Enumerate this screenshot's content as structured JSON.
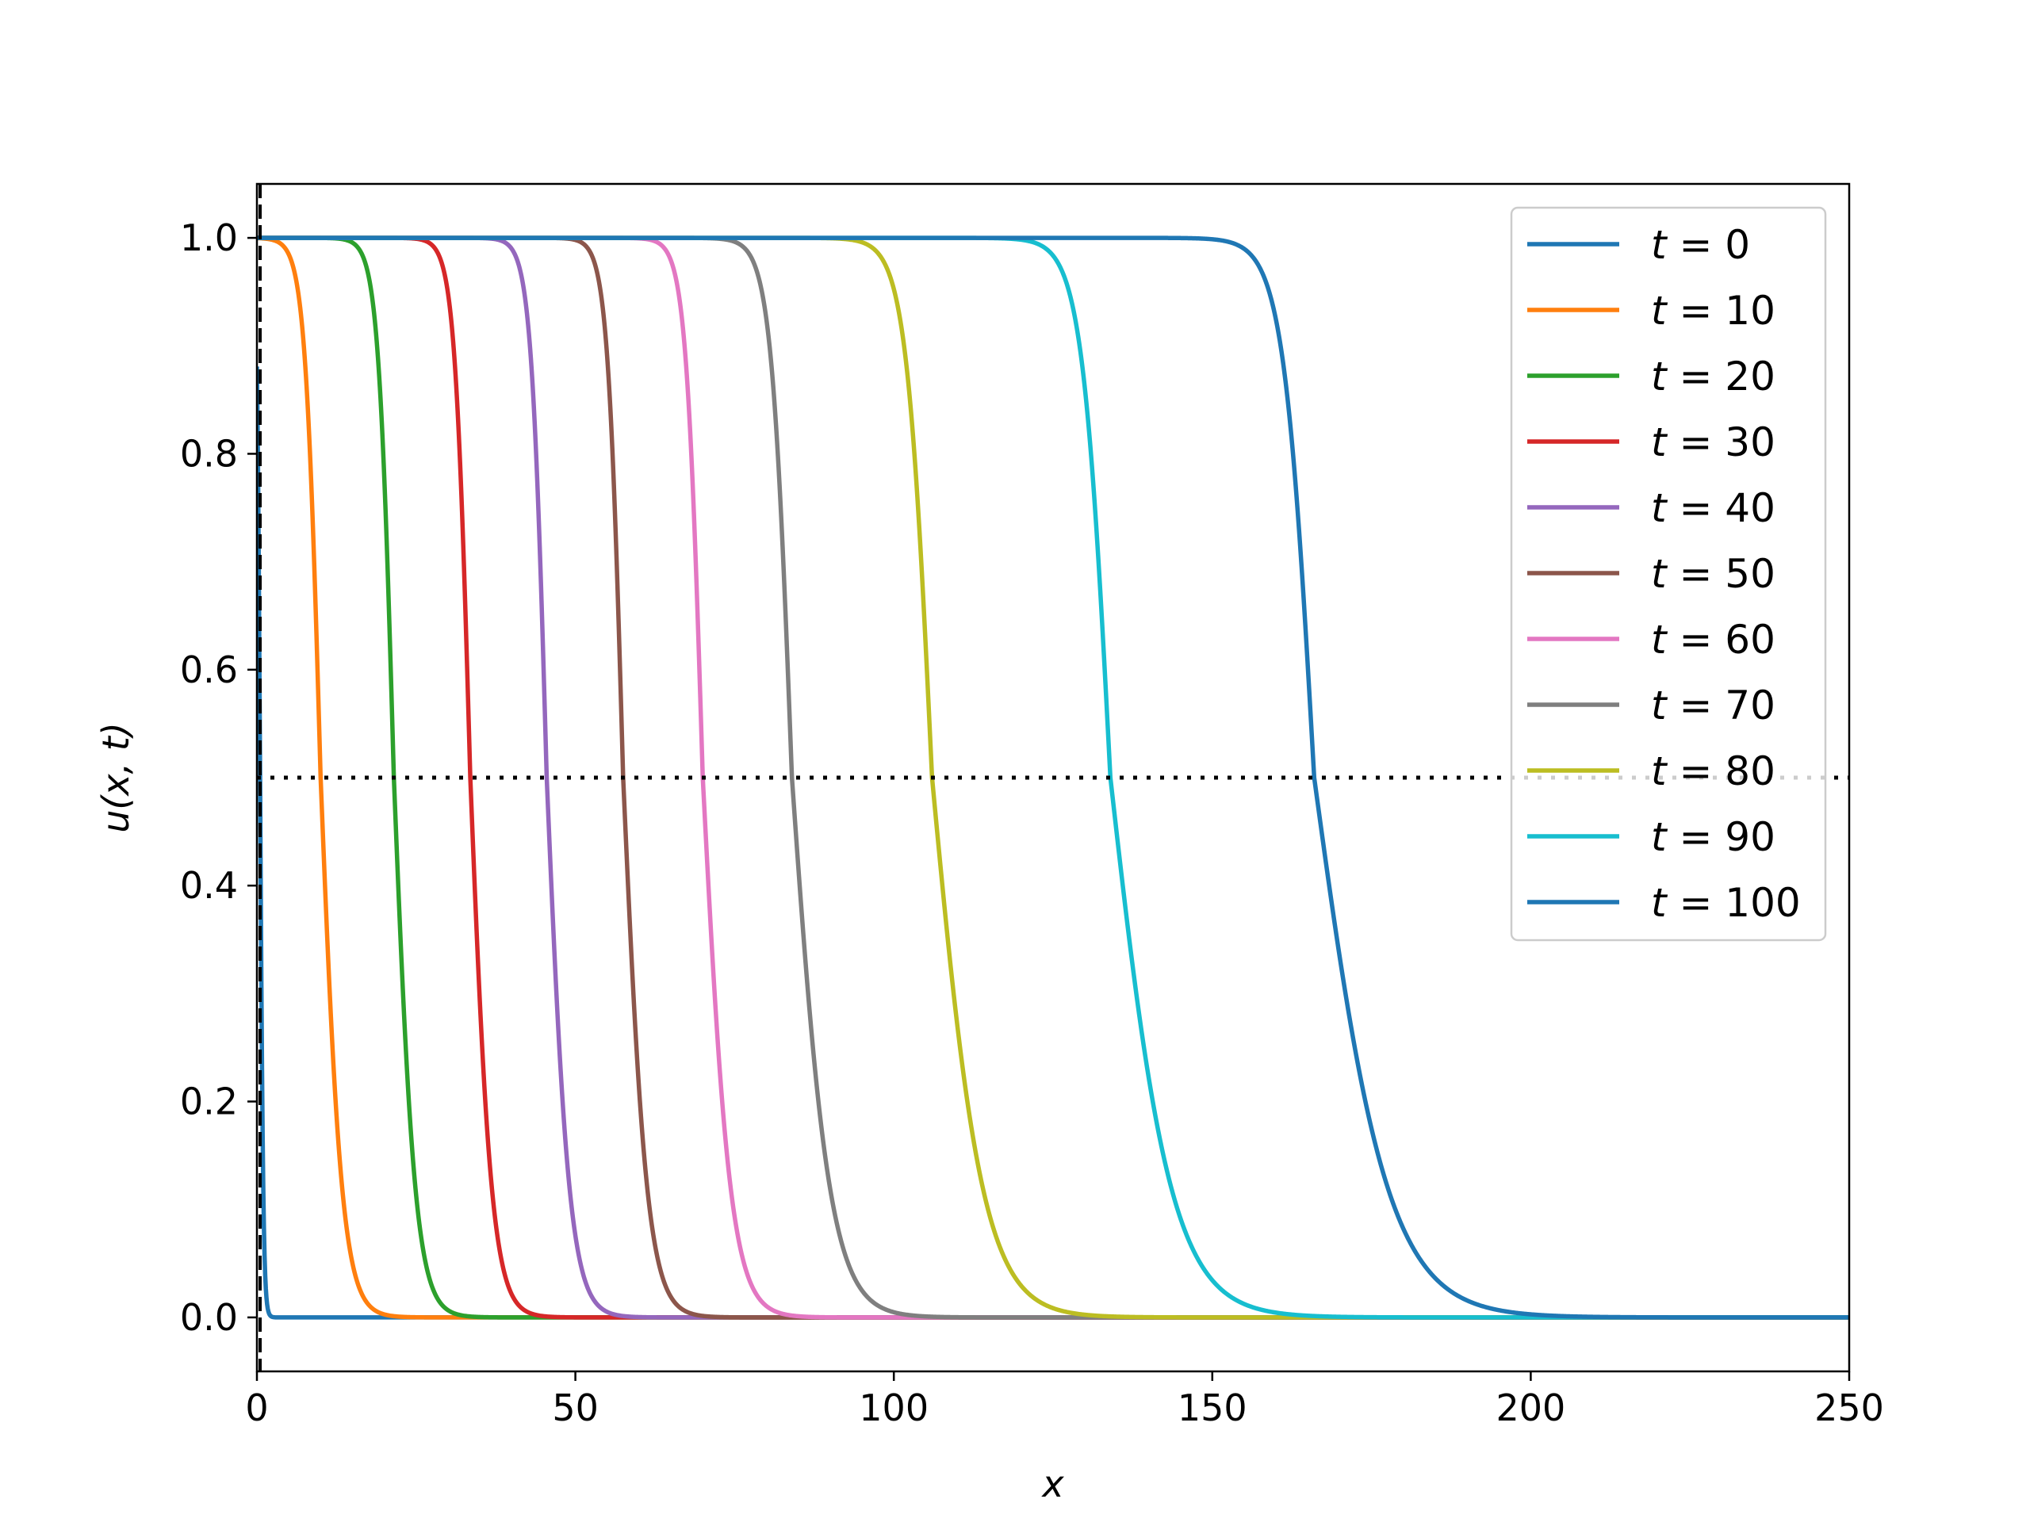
{
  "chart_data": {
    "type": "line",
    "title": "",
    "xlabel": "x",
    "ylabel": "u(x, t)",
    "xlim": [
      0,
      250
    ],
    "ylim": [
      -0.05,
      1.05
    ],
    "xticks": [
      0,
      50,
      100,
      150,
      200,
      250
    ],
    "yticks": [
      0.0,
      0.2,
      0.4,
      0.6,
      0.8,
      1.0
    ],
    "xtick_labels": [
      "0",
      "50",
      "100",
      "150",
      "200",
      "250"
    ],
    "ytick_labels": [
      "0.0",
      "0.2",
      "0.4",
      "0.6",
      "0.8",
      "1.0"
    ],
    "grid": false,
    "legend_position": "top-right",
    "reference_lines": [
      {
        "orientation": "horizontal",
        "y": 0.5,
        "style": "dotted",
        "color": "#000000"
      },
      {
        "orientation": "vertical",
        "x": 0.5,
        "style": "dashed",
        "color": "#000000"
      }
    ],
    "series": [
      {
        "label": "t = 0",
        "t": "0",
        "color": "#1f77b4",
        "x_half": 0.5,
        "width_left": 0.25,
        "width_right": 0.25
      },
      {
        "label": "t = 10",
        "t": "10",
        "color": "#ff7f0e",
        "x_half": 10,
        "width_left": 1.2,
        "width_right": 1.7
      },
      {
        "label": "t = 20",
        "t": "20",
        "color": "#2ca02c",
        "x_half": 21.5,
        "width_left": 1.2,
        "width_right": 1.7
      },
      {
        "label": "t = 30",
        "t": "30",
        "color": "#d62728",
        "x_half": 33.5,
        "width_left": 1.2,
        "width_right": 1.7
      },
      {
        "label": "t = 40",
        "t": "40",
        "color": "#9467bd",
        "x_half": 45.5,
        "width_left": 1.2,
        "width_right": 1.8
      },
      {
        "label": "t = 50",
        "t": "50",
        "color": "#8c564b",
        "x_half": 57.5,
        "width_left": 1.2,
        "width_right": 1.9
      },
      {
        "label": "t = 60",
        "t": "60",
        "color": "#e377c2",
        "x_half": 70,
        "width_left": 1.3,
        "width_right": 2.2
      },
      {
        "label": "t = 70",
        "t": "70",
        "color": "#7f7f7f",
        "x_half": 84,
        "width_left": 1.6,
        "width_right": 3.0
      },
      {
        "label": "t = 80",
        "t": "80",
        "color": "#bcbd22",
        "x_half": 106,
        "width_left": 2.0,
        "width_right": 4.0
      },
      {
        "label": "t = 90",
        "t": "90",
        "color": "#17becf",
        "x_half": 134,
        "width_left": 2.2,
        "width_right": 4.8
      },
      {
        "label": "t = 100",
        "t": "100",
        "color": "#1f77b4",
        "x_half": 166,
        "width_left": 2.4,
        "width_right": 5.8
      }
    ]
  }
}
